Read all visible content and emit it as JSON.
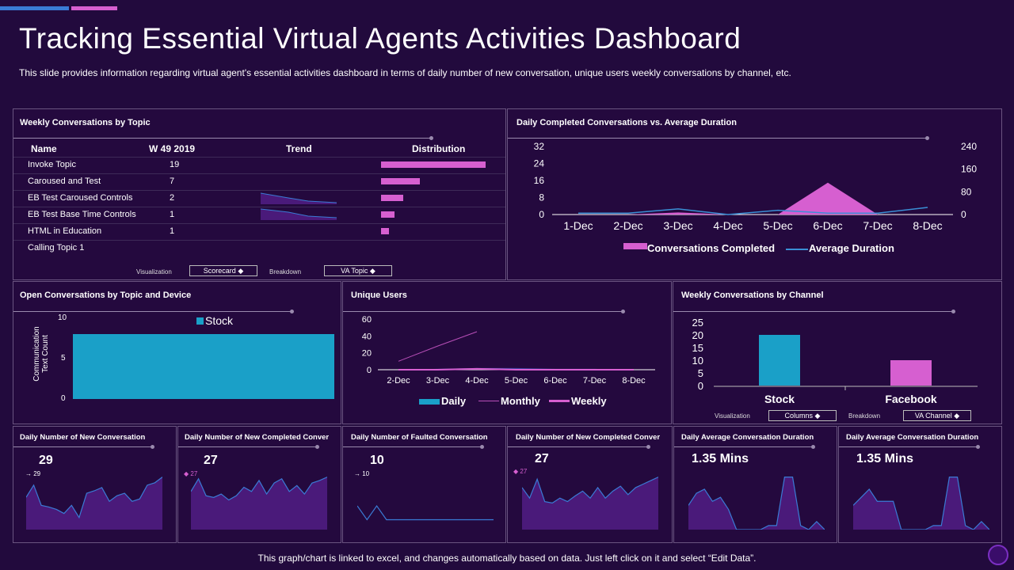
{
  "header": {
    "title": "Tracking Essential Virtual Agents Activities Dashboard",
    "subtitle": "This slide provides information regarding virtual agent's essential activities dashboard in terms of daily number of new conversation, unique users weekly conversations by channel, etc."
  },
  "topic_panel": {
    "title": "Weekly Conversations by Topic",
    "headers": {
      "name": "Name",
      "week": "W 49 2019",
      "trend": "Trend",
      "distribution": "Distribution"
    },
    "rows": [
      {
        "name": "Invoke Topic",
        "count": "19",
        "dist": 19
      },
      {
        "name": "Caroused and Test",
        "count": "7",
        "dist": 7
      },
      {
        "name": "EB Test Caroused Controls",
        "count": "2",
        "dist": 4
      },
      {
        "name": "EB Test Base Time Controls",
        "count": "1",
        "dist": 2.5
      },
      {
        "name": "HTML in Education",
        "count": "1",
        "dist": 1.5
      },
      {
        "name": "Calling Topic 1",
        "count": "",
        "dist": 0
      }
    ],
    "visualization_label": "Visualization",
    "visualization_value": "Scorecard",
    "breakdown_label": "Breakdown",
    "breakdown_value": "VA Topic"
  },
  "completed_panel": {
    "title": "Daily Completed Conversations vs. Average Duration",
    "left_ticks": [
      "32",
      "24",
      "16",
      "8",
      "0"
    ],
    "right_ticks": [
      "240",
      "160",
      "80",
      "0"
    ],
    "legend": {
      "completed": "Conversations Completed",
      "duration": "Average Duration"
    }
  },
  "open_panel": {
    "title": "Open Conversations by Topic and Device",
    "ylabel_line1": "Communication",
    "ylabel_line2": "Text Count",
    "ticks": [
      "10",
      "5",
      "0"
    ],
    "legend": "Stock"
  },
  "users_panel": {
    "title": "Unique Users",
    "ticks": [
      "60",
      "40",
      "20",
      "0"
    ],
    "legend": {
      "daily": "Daily",
      "monthly": "Monthly",
      "weekly": "Weekly"
    }
  },
  "channel_panel": {
    "title": "Weekly Conversations by Channel",
    "ticks": [
      "25",
      "20",
      "15",
      "10",
      "5",
      "0"
    ],
    "visualization_label": "Visualization",
    "visualization_value": "Columns",
    "breakdown_label": "Breakdown",
    "breakdown_value": "VA Channel"
  },
  "kpis": [
    {
      "title": "Daily Number of New Conversation",
      "value": "29",
      "small": "29",
      "marker": "→"
    },
    {
      "title": "Daily Number of New Completed Conver",
      "value": "27",
      "small": "27",
      "marker": "◆"
    },
    {
      "title": "Daily Number of Faulted Conversation",
      "value": "10",
      "small": "10",
      "marker": "→"
    },
    {
      "title": "Daily Number of New Completed Conver",
      "value": "27",
      "small": "27",
      "marker": "◆"
    },
    {
      "title": "Daily Average Conversation Duration",
      "value": "1.35 Mins"
    },
    {
      "title": "Daily Average Conversation Duration",
      "value": "1.35 Mins"
    }
  ],
  "footer": "This graph/chart is linked to excel,  and changes automatically based on data. Just left click on it and select “Edit Data”.",
  "chart_data": [
    {
      "type": "line",
      "title": "Daily Completed Conversations vs. Average Duration",
      "categories": [
        "1-Dec",
        "2-Dec",
        "3-Dec",
        "4-Dec",
        "5-Dec",
        "6-Dec",
        "7-Dec",
        "8-Dec"
      ],
      "series": [
        {
          "name": "Conversations Completed",
          "kind": "area",
          "axis": "left",
          "values": [
            0,
            0,
            1,
            0,
            0,
            15,
            0,
            0
          ]
        },
        {
          "name": "Average Duration",
          "kind": "line",
          "axis": "right",
          "values": [
            5,
            5,
            20,
            0,
            15,
            5,
            5,
            25
          ]
        }
      ],
      "ylim_left": [
        0,
        32
      ],
      "ylim_right": [
        0,
        240
      ],
      "colors": {
        "Conversations Completed": "#d65fd0",
        "Average Duration": "#3a8fd5"
      }
    },
    {
      "type": "bar",
      "title": "Open Conversations by Topic and Device",
      "categories": [
        ""
      ],
      "series": [
        {
          "name": "Stock",
          "values": [
            8
          ]
        }
      ],
      "ylabel": "Communication Text Count",
      "ylim": [
        0,
        10
      ],
      "colors": {
        "Stock": "#1aa0c8"
      }
    },
    {
      "type": "line",
      "title": "Unique Users",
      "categories": [
        "2-Dec",
        "3-Dec",
        "4-Dec",
        "5-Dec",
        "6-Dec",
        "7-Dec",
        "8-Dec"
      ],
      "series": [
        {
          "name": "Daily",
          "kind": "area",
          "values": [
            0,
            1,
            2,
            2,
            1,
            1,
            0
          ]
        },
        {
          "name": "Monthly",
          "kind": "line",
          "values": [
            10,
            28,
            45,
            null,
            null,
            null,
            null
          ]
        },
        {
          "name": "Weekly",
          "kind": "line",
          "values": [
            0,
            0,
            1,
            0,
            0,
            0,
            0
          ]
        }
      ],
      "ylim": [
        0,
        60
      ],
      "colors": {
        "Daily": "#3a7bd5",
        "Monthly": "#b84fb8",
        "Weekly": "#d65fd0"
      }
    },
    {
      "type": "bar",
      "title": "Weekly Conversations by Channel",
      "categories": [
        "Stock",
        "Facebook"
      ],
      "values": [
        20,
        10
      ],
      "ylim": [
        0,
        25
      ],
      "colors": [
        "#1aa0c8",
        "#d65fd0"
      ]
    }
  ],
  "sparklines": [
    [
      40,
      55,
      30,
      28,
      25,
      20,
      30,
      15,
      45,
      48,
      52,
      35,
      42,
      45,
      35,
      38,
      55,
      58,
      65
    ],
    [
      45,
      60,
      40,
      38,
      42,
      35,
      40,
      50,
      45,
      58,
      42,
      55,
      60,
      45,
      52,
      42,
      55,
      58,
      62
    ],
    [
      12,
      5,
      12,
      5,
      5,
      5,
      5,
      5,
      5,
      5,
      5,
      5,
      5,
      5,
      5
    ],
    [
      60,
      45,
      72,
      40,
      38,
      45,
      40,
      48,
      55,
      45,
      60,
      45,
      55,
      62,
      50,
      60,
      65,
      70,
      75
    ],
    [
      30,
      45,
      50,
      35,
      40,
      25,
      0,
      0,
      0,
      0,
      5,
      5,
      65,
      65,
      5,
      0,
      10,
      0
    ],
    [
      30,
      40,
      50,
      35,
      35,
      35,
      0,
      0,
      0,
      0,
      5,
      5,
      65,
      65,
      5,
      0,
      10,
      0
    ]
  ]
}
